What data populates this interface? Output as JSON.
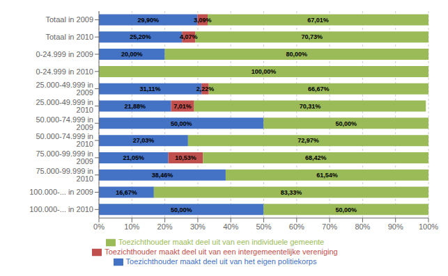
{
  "chart_data": {
    "type": "bar",
    "orientation": "horizontal",
    "stacked": true,
    "data_labels": true,
    "grid": true,
    "legend": "bottom",
    "categories": [
      "Totaal in 2009",
      "Totaal in 2010",
      "0-24.999 in 2009",
      "0-24.999 in 2010",
      "25.000-49.999 in 2009",
      "25.000-49.999 in 2010",
      "50.000-74.999 in 2009",
      "50.000-74.999 in 2010",
      "75.000-99.999 in 2009",
      "75.000-99.999 in 2010",
      "100.000-... in 2009",
      "100.000-... in 2010"
    ],
    "series": [
      {
        "name": "Toezichthouder maakt deel uit van het eigen politiekorps",
        "color": "#4472C4",
        "values": [
          29.9,
          25.2,
          20.0,
          0.0,
          31.11,
          21.88,
          50.0,
          27.03,
          21.05,
          38.46,
          16.67,
          50.0
        ],
        "value_labels": [
          "29,90%",
          "25,20%",
          "20,00%",
          null,
          "31,11%",
          "21,88%",
          "50,00%",
          "27,03%",
          "21,05%",
          "38,46%",
          "16,67%",
          "50,00%"
        ]
      },
      {
        "name": "Toezichthouder maakt deel uit van een intergemeentelijke vereniging",
        "color": "#C0504D",
        "values": [
          3.09,
          4.07,
          0.0,
          0.0,
          2.22,
          7.01,
          0.0,
          0.0,
          10.53,
          0.0,
          0.0,
          0.0
        ],
        "value_labels": [
          "3,09%",
          "4,07%",
          null,
          null,
          "2,22%",
          "7,01%",
          null,
          null,
          "10,53%",
          null,
          null,
          null
        ]
      },
      {
        "name": "Toezichthouder maakt deel uit van een individuele gemeente",
        "color": "#9BBB59",
        "values": [
          67.01,
          70.73,
          80.0,
          100.0,
          66.67,
          70.31,
          50.0,
          72.97,
          68.42,
          61.54,
          83.33,
          50.0
        ],
        "value_labels": [
          "67,01%",
          "70,73%",
          "80,00%",
          "100,00%",
          "66,67%",
          "70,31%",
          "50,00%",
          "72,97%",
          "68,42%",
          "61,54%",
          "83,33%",
          "50,00%"
        ]
      }
    ],
    "xlim": [
      0,
      100
    ],
    "xticks": [
      {
        "value": 0,
        "label": "0%"
      },
      {
        "value": 10,
        "label": "10%"
      },
      {
        "value": 20,
        "label": "20%"
      },
      {
        "value": 30,
        "label": "30%"
      },
      {
        "value": 40,
        "label": "40%"
      },
      {
        "value": 50,
        "label": "50%"
      },
      {
        "value": 60,
        "label": "60%"
      },
      {
        "value": 70,
        "label": "70%"
      },
      {
        "value": 80,
        "label": "80%"
      },
      {
        "value": 90,
        "label": "90%"
      },
      {
        "value": 100,
        "label": "100%"
      }
    ]
  }
}
